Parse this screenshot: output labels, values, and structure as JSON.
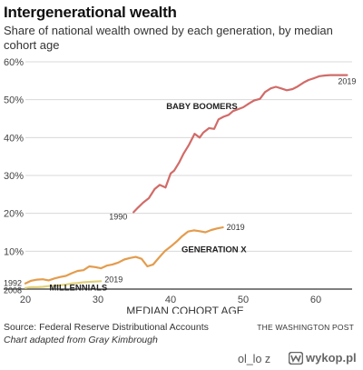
{
  "title": "Intergenerational wealth",
  "subtitle": "Share of national wealth owned by each generation, by median cohort age",
  "source": "Source: Federal Reserve Distributional Accounts",
  "credit": "THE WASHINGTON POST",
  "adapted": "Chart adapted from Gray Kimbrough",
  "footer": {
    "user": "ol_lo  z",
    "logo_text": "wykop.pl"
  },
  "chart_data": {
    "type": "line",
    "xlabel": "MEDIAN COHORT AGE",
    "ylabel": "",
    "xlim": [
      20,
      65
    ],
    "ylim": [
      0,
      60
    ],
    "x_ticks": [
      "20",
      "30",
      "40",
      "50",
      "60"
    ],
    "y_ticks": [
      "60%",
      "50%",
      "40%",
      "30%",
      "20%",
      "10%"
    ],
    "grid": "horizontal",
    "series": [
      {
        "name": "BABY BOOMERS",
        "color": "#d16b68",
        "start_label": "1990",
        "end_label": "2019",
        "x": [
          34.9,
          35.5,
          36.2,
          37.0,
          37.8,
          38.5,
          39.3,
          40.0,
          40.5,
          41.2,
          41.8,
          42.5,
          43.3,
          44.0,
          44.5,
          45.3,
          46.0,
          46.6,
          47.3,
          48.0,
          48.6,
          49.3,
          50.0,
          50.8,
          51.5,
          52.3,
          53.0,
          53.8,
          54.5,
          55.2,
          56.0,
          56.8,
          57.5,
          58.3,
          59.0,
          59.8,
          60.5,
          61.3,
          62.0,
          62.8,
          63.5,
          64.3
        ],
        "values": [
          20.3,
          21.5,
          22.8,
          24.0,
          26.4,
          27.5,
          26.8,
          30.5,
          31.3,
          33.5,
          35.8,
          38.0,
          41.0,
          40.0,
          41.3,
          42.5,
          42.3,
          44.8,
          45.5,
          46.0,
          47.0,
          47.5,
          48.0,
          49.0,
          49.8,
          50.2,
          52.0,
          53.0,
          53.4,
          53.0,
          52.5,
          52.8,
          53.5,
          54.5,
          55.2,
          55.7,
          56.2,
          56.4,
          56.5,
          56.5,
          56.5,
          56.5
        ]
      },
      {
        "name": "GENERATION X",
        "color": "#e39c4d",
        "start_label": "",
        "end_label": "2019",
        "x": [
          20.0,
          20.8,
          21.6,
          22.4,
          23.2,
          24.0,
          24.8,
          25.6,
          26.4,
          27.2,
          28.0,
          28.8,
          29.6,
          30.4,
          31.2,
          32.0,
          32.8,
          33.6,
          34.4,
          35.2,
          36.0,
          36.8,
          37.6,
          38.4,
          39.2,
          40.0,
          40.8,
          41.6,
          42.4,
          43.2,
          44.0,
          44.8,
          45.6,
          46.4,
          47.2
        ],
        "values": [
          1.5,
          2.2,
          2.5,
          2.6,
          2.3,
          2.8,
          3.2,
          3.5,
          4.2,
          4.8,
          5.0,
          6.0,
          5.8,
          5.5,
          6.2,
          6.5,
          7.0,
          7.8,
          8.2,
          8.5,
          8.0,
          6.0,
          6.5,
          8.3,
          10.0,
          11.2,
          12.5,
          14.0,
          15.2,
          15.5,
          15.3,
          15.0,
          15.6,
          16.0,
          16.3
        ]
      },
      {
        "name": "MILLENNIALS",
        "color": "#e2d17a",
        "start_label": "2008",
        "end_label": "2019",
        "x": [
          20.0,
          20.8,
          21.6,
          22.4,
          23.2,
          24.0,
          24.8,
          25.6,
          26.4,
          27.2,
          28.0,
          28.8,
          29.6,
          30.4
        ],
        "values": [
          0.3,
          0.5,
          0.5,
          0.6,
          0.8,
          0.9,
          1.0,
          1.2,
          1.5,
          1.6,
          1.8,
          1.9,
          2.0,
          2.1
        ]
      }
    ],
    "start_label_genx": "1992"
  }
}
